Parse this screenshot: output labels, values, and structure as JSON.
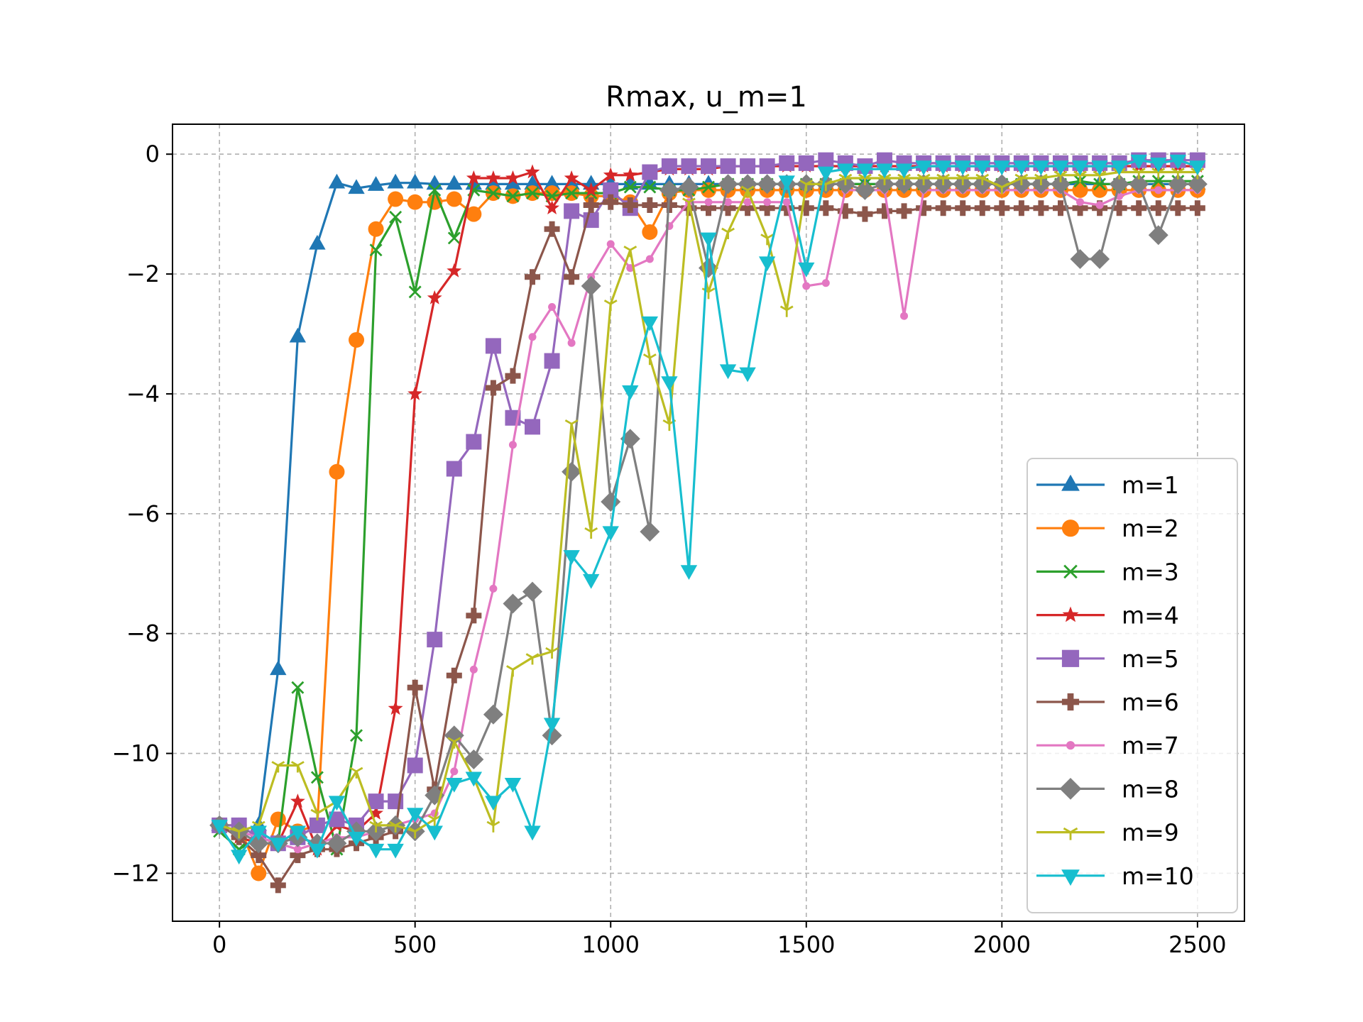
{
  "chart_data": {
    "type": "line",
    "title": "Rmax, u_m=1",
    "xlabel": "",
    "ylabel": "",
    "xlim": [
      -120,
      2620
    ],
    "ylim": [
      -12.8,
      0.5
    ],
    "xticks": [
      0,
      500,
      1000,
      1500,
      2000,
      2500
    ],
    "yticks": [
      0,
      -2,
      -4,
      -6,
      -8,
      -10,
      -12
    ],
    "xtick_labels": [
      "0",
      "500",
      "1000",
      "1500",
      "2000",
      "2500"
    ],
    "ytick_labels": [
      "0",
      "−2",
      "−4",
      "−6",
      "−8",
      "−10",
      "−12"
    ],
    "grid": true,
    "legend_position": "lower-right",
    "x": [
      0,
      50,
      100,
      150,
      200,
      250,
      300,
      350,
      400,
      450,
      500,
      550,
      600,
      650,
      700,
      750,
      800,
      850,
      900,
      950,
      1000,
      1050,
      1100,
      1150,
      1200,
      1250,
      1300,
      1350,
      1400,
      1450,
      1500,
      1550,
      1600,
      1650,
      1700,
      1750,
      1800,
      1850,
      1900,
      1950,
      2000,
      2050,
      2100,
      2150,
      2200,
      2250,
      2300,
      2350,
      2400,
      2450,
      2500
    ],
    "series": [
      {
        "name": "m=1",
        "color": "#1f77b4",
        "marker": "triangle-up",
        "values": [
          -11.2,
          -11.3,
          -11.2,
          -8.6,
          -3.05,
          -1.5,
          -0.48,
          -0.57,
          -0.52,
          -0.48,
          -0.48,
          -0.5,
          -0.5,
          -0.5,
          -0.5,
          -0.5,
          -0.5,
          -0.5,
          -0.5,
          -0.5,
          -0.5,
          -0.5,
          -0.5,
          -0.5,
          -0.5,
          -0.5,
          -0.5,
          -0.5,
          -0.5,
          -0.5,
          -0.5,
          -0.5,
          -0.5,
          -0.5,
          -0.5,
          -0.5,
          -0.5,
          -0.5,
          -0.5,
          -0.5,
          -0.5,
          -0.5,
          -0.5,
          -0.5,
          -0.5,
          -0.5,
          -0.5,
          -0.5,
          -0.5,
          -0.5,
          -0.5
        ]
      },
      {
        "name": "m=2",
        "color": "#ff7f0e",
        "marker": "circle",
        "values": [
          -11.2,
          -11.2,
          -12.0,
          -11.1,
          -11.3,
          -11.2,
          -5.3,
          -3.1,
          -1.25,
          -0.75,
          -0.8,
          -0.8,
          -0.75,
          -1.0,
          -0.65,
          -0.7,
          -0.65,
          -0.65,
          -0.65,
          -0.7,
          -0.7,
          -0.8,
          -1.3,
          -0.65,
          -0.6,
          -0.6,
          -0.6,
          -0.6,
          -0.6,
          -0.6,
          -0.6,
          -0.6,
          -0.6,
          -0.6,
          -0.6,
          -0.6,
          -0.6,
          -0.6,
          -0.6,
          -0.6,
          -0.6,
          -0.6,
          -0.6,
          -0.6,
          -0.6,
          -0.6,
          -0.6,
          -0.6,
          -0.6,
          -0.6,
          -0.6
        ]
      },
      {
        "name": "m=3",
        "color": "#2ca02c",
        "marker": "x",
        "values": [
          -11.3,
          -11.6,
          -11.4,
          -11.5,
          -8.9,
          -10.4,
          -11.6,
          -9.7,
          -1.6,
          -1.05,
          -2.3,
          -0.6,
          -1.4,
          -0.6,
          -0.65,
          -0.7,
          -0.65,
          -0.7,
          -0.65,
          -0.65,
          -0.65,
          -0.55,
          -0.55,
          -0.6,
          -0.6,
          -0.55,
          -0.5,
          -0.5,
          -0.5,
          -0.5,
          -0.5,
          -0.5,
          -0.5,
          -0.5,
          -0.5,
          -0.5,
          -0.5,
          -0.5,
          -0.5,
          -0.5,
          -0.5,
          -0.5,
          -0.5,
          -0.5,
          -0.45,
          -0.5,
          -0.5,
          -0.45,
          -0.45,
          -0.45,
          -0.45
        ]
      },
      {
        "name": "m=4",
        "color": "#d62728",
        "marker": "star",
        "values": [
          -11.2,
          -11.4,
          -11.5,
          -11.5,
          -10.8,
          -11.6,
          -11.2,
          -11.3,
          -11.0,
          -9.25,
          -4.0,
          -2.4,
          -1.95,
          -0.4,
          -0.4,
          -0.4,
          -0.3,
          -0.9,
          -0.4,
          -0.6,
          -0.35,
          -0.35,
          -0.3,
          -0.25,
          -0.25,
          -0.25,
          -0.2,
          -0.2,
          -0.2,
          -0.2,
          -0.2,
          -0.2,
          -0.2,
          -0.2,
          -0.2,
          -0.2,
          -0.2,
          -0.2,
          -0.2,
          -0.2,
          -0.2,
          -0.2,
          -0.2,
          -0.2,
          -0.2,
          -0.2,
          -0.2,
          -0.2,
          -0.2,
          -0.2,
          -0.2
        ]
      },
      {
        "name": "m=5",
        "color": "#9467bd",
        "marker": "square",
        "values": [
          -11.2,
          -11.2,
          -11.4,
          -11.5,
          -11.4,
          -11.2,
          -11.1,
          -11.2,
          -10.8,
          -10.8,
          -10.2,
          -8.1,
          -5.25,
          -4.8,
          -3.2,
          -4.4,
          -4.55,
          -3.45,
          -0.95,
          -1.1,
          -0.6,
          -0.9,
          -0.3,
          -0.2,
          -0.2,
          -0.2,
          -0.2,
          -0.2,
          -0.2,
          -0.15,
          -0.15,
          -0.1,
          -0.15,
          -0.2,
          -0.1,
          -0.15,
          -0.15,
          -0.15,
          -0.15,
          -0.15,
          -0.15,
          -0.15,
          -0.15,
          -0.15,
          -0.15,
          -0.15,
          -0.15,
          -0.1,
          -0.1,
          -0.1,
          -0.1
        ]
      },
      {
        "name": "m=6",
        "color": "#8c564b",
        "marker": "plus",
        "values": [
          -11.2,
          -11.4,
          -11.7,
          -12.2,
          -11.7,
          -11.6,
          -11.6,
          -11.5,
          -11.4,
          -11.3,
          -8.9,
          -10.6,
          -8.7,
          -7.7,
          -3.9,
          -3.7,
          -2.05,
          -1.25,
          -2.05,
          -0.85,
          -0.8,
          -0.85,
          -0.85,
          -0.85,
          -0.9,
          -0.9,
          -0.9,
          -0.9,
          -0.9,
          -0.9,
          -0.9,
          -0.9,
          -0.95,
          -1.0,
          -0.95,
          -0.95,
          -0.9,
          -0.9,
          -0.9,
          -0.9,
          -0.9,
          -0.9,
          -0.9,
          -0.9,
          -0.9,
          -0.9,
          -0.9,
          -0.9,
          -0.9,
          -0.9,
          -0.9
        ]
      },
      {
        "name": "m=7",
        "color": "#e377c2",
        "marker": "point",
        "values": [
          -11.2,
          -11.3,
          -11.4,
          -11.5,
          -11.6,
          -11.5,
          -11.4,
          -11.4,
          -11.3,
          -11.2,
          -11.1,
          -11.0,
          -10.3,
          -8.6,
          -7.25,
          -4.85,
          -3.05,
          -2.55,
          -3.15,
          -2.05,
          -1.5,
          -1.9,
          -1.75,
          -1.2,
          -0.8,
          -0.8,
          -0.8,
          -0.8,
          -0.8,
          -0.8,
          -2.2,
          -2.15,
          -0.6,
          -0.6,
          -0.6,
          -2.7,
          -0.6,
          -0.6,
          -0.6,
          -0.6,
          -0.6,
          -0.6,
          -0.6,
          -0.6,
          -0.8,
          -0.85,
          -0.7,
          -0.6,
          -0.6,
          -0.6,
          -0.6
        ]
      },
      {
        "name": "m=8",
        "color": "#7f7f7f",
        "marker": "diamond",
        "values": [
          -11.2,
          -11.3,
          -11.5,
          -11.5,
          -11.4,
          -11.5,
          -11.5,
          -11.3,
          -11.3,
          -11.2,
          -11.3,
          -10.7,
          -9.7,
          -10.1,
          -9.35,
          -7.5,
          -7.3,
          -9.7,
          -5.3,
          -2.2,
          -5.8,
          -4.75,
          -6.3,
          -0.6,
          -0.55,
          -1.9,
          -0.5,
          -0.5,
          -0.5,
          -0.5,
          -0.5,
          -0.5,
          -0.5,
          -0.6,
          -0.5,
          -0.5,
          -0.5,
          -0.5,
          -0.5,
          -0.5,
          -0.5,
          -0.5,
          -0.5,
          -0.5,
          -1.75,
          -1.75,
          -0.5,
          -0.5,
          -1.35,
          -0.5,
          -0.5
        ]
      },
      {
        "name": "m=9",
        "color": "#bcbd22",
        "marker": "tri-down",
        "values": [
          -11.2,
          -11.3,
          -11.2,
          -10.2,
          -10.2,
          -11.0,
          -10.8,
          -10.3,
          -11.2,
          -11.2,
          -11.3,
          -11.1,
          -9.8,
          -10.4,
          -11.2,
          -8.6,
          -8.4,
          -8.3,
          -4.5,
          -6.3,
          -2.5,
          -1.6,
          -3.4,
          -4.5,
          -0.8,
          -2.3,
          -1.3,
          -0.6,
          -1.4,
          -2.6,
          -0.5,
          -0.5,
          -0.4,
          -0.4,
          -0.4,
          -0.4,
          -0.4,
          -0.4,
          -0.4,
          -0.4,
          -0.55,
          -0.4,
          -0.4,
          -0.35,
          -0.35,
          -0.35,
          -0.3,
          -0.3,
          -0.3,
          -0.3,
          -0.3
        ]
      },
      {
        "name": "m=10",
        "color": "#17becf",
        "marker": "triangle-down",
        "values": [
          -11.2,
          -11.7,
          -11.3,
          -11.5,
          -11.3,
          -11.6,
          -10.8,
          -11.4,
          -11.6,
          -11.6,
          -11.0,
          -11.3,
          -10.5,
          -10.4,
          -10.8,
          -10.5,
          -11.3,
          -9.5,
          -6.7,
          -7.1,
          -6.3,
          -3.95,
          -2.8,
          -3.8,
          -6.95,
          -1.4,
          -3.6,
          -3.65,
          -1.8,
          -0.45,
          -1.9,
          -0.3,
          -0.25,
          -0.25,
          -0.25,
          -0.25,
          -0.2,
          -0.2,
          -0.2,
          -0.2,
          -0.2,
          -0.2,
          -0.2,
          -0.2,
          -0.2,
          -0.2,
          -0.2,
          -0.1,
          -0.15,
          -0.1,
          -0.2
        ]
      }
    ]
  }
}
